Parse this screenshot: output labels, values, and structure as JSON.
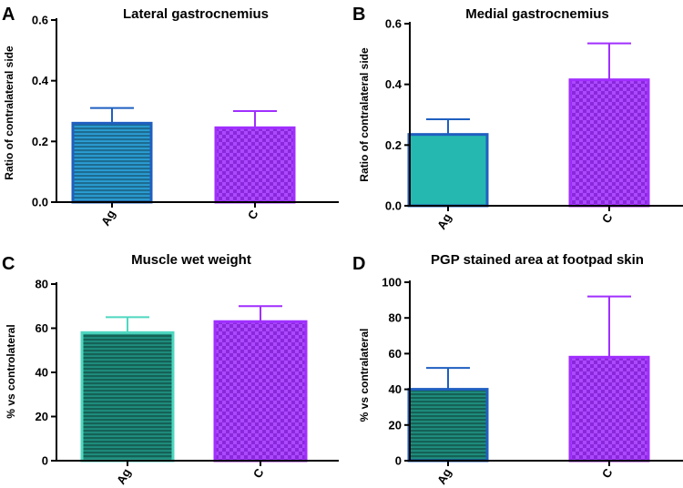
{
  "chart_data": [
    {
      "panel_label": "A",
      "type": "bar",
      "title": "Lateral gastrocnemius",
      "ylabel": "Ratio of contralateral side",
      "xlabel": "",
      "categories": [
        "Ag",
        "C"
      ],
      "values": [
        0.26,
        0.245
      ],
      "errors": [
        0.05,
        0.055
      ],
      "ylim": [
        0,
        0.6
      ],
      "yticks": [
        0.0,
        0.2,
        0.4,
        0.6
      ],
      "ytick_labels": [
        "0.0",
        "0.2",
        "0.4",
        "0.6"
      ],
      "bar_fills": [
        "#2b9fd6",
        "#a02fff"
      ],
      "bar_strokes": [
        "#1f5fc0",
        "#a02fff"
      ],
      "bar_patterns": [
        "stripes",
        "checker"
      ]
    },
    {
      "panel_label": "B",
      "type": "bar",
      "title": "Medial gastrocnemius",
      "ylabel": "Ratio of contralateral side",
      "xlabel": "",
      "categories": [
        "Ag",
        "C"
      ],
      "values": [
        0.235,
        0.415
      ],
      "errors": [
        0.05,
        0.12
      ],
      "ylim": [
        0,
        0.6
      ],
      "yticks": [
        0.0,
        0.2,
        0.4,
        0.6
      ],
      "ytick_labels": [
        "0.0",
        "0.2",
        "0.4",
        "0.6"
      ],
      "bar_fills": [
        "#25b8b0",
        "#a02fff"
      ],
      "bar_strokes": [
        "#1f5fc0",
        "#a02fff"
      ],
      "bar_patterns": [
        "solid",
        "checker"
      ]
    },
    {
      "panel_label": "C",
      "type": "bar",
      "title": "Muscle wet weight",
      "ylabel": "% vs controlateral",
      "xlabel": "",
      "categories": [
        "Ag",
        "C"
      ],
      "values": [
        58,
        63
      ],
      "errors": [
        7,
        7
      ],
      "ylim": [
        0,
        80
      ],
      "yticks": [
        0,
        20,
        40,
        60,
        80
      ],
      "ytick_labels": [
        "0",
        "20",
        "40",
        "60",
        "80"
      ],
      "bar_fills": [
        "#1f8f7f",
        "#a02fff"
      ],
      "bar_strokes": [
        "#4fd8c0",
        "#a02fff"
      ],
      "bar_patterns": [
        "stripes",
        "checker"
      ]
    },
    {
      "panel_label": "D",
      "type": "bar",
      "title": "PGP stained area at footpad skin",
      "ylabel": "% vs contralateral",
      "xlabel": "",
      "categories": [
        "Ag",
        "C"
      ],
      "values": [
        40,
        58
      ],
      "errors": [
        12,
        34
      ],
      "ylim": [
        0,
        100
      ],
      "yticks": [
        0,
        20,
        40,
        60,
        80,
        100
      ],
      "ytick_labels": [
        "0",
        "20",
        "40",
        "60",
        "80",
        "100"
      ],
      "bar_fills": [
        "#1f8f7f",
        "#a02fff"
      ],
      "bar_strokes": [
        "#1f5fc0",
        "#a02fff"
      ],
      "bar_patterns": [
        "stripes",
        "checker"
      ]
    }
  ]
}
